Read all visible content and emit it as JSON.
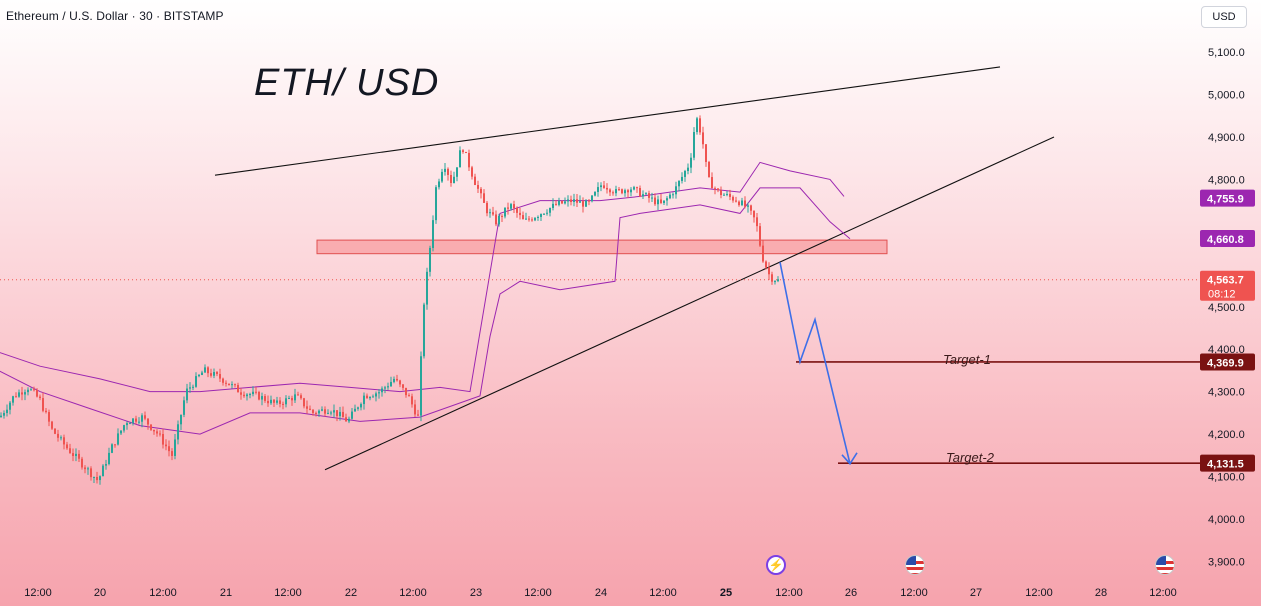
{
  "header": {
    "symbol_line": "Ethereum / U.S. Dollar · 30 · BITSTAMP"
  },
  "title_annotation": "ETH/ USD",
  "currency_button": "USD",
  "targets": {
    "target1_label": "Target-1",
    "target2_label": "Target-2"
  },
  "badges": {
    "upper_band": "4,755.9",
    "lower_band": "4,660.8",
    "last_price": "4,563.7",
    "countdown": "08:12",
    "target1": "4,369.9",
    "target2": "4,131.5"
  },
  "colors": {
    "up_candle": "#26a69a",
    "down_candle": "#ef5350",
    "channel_line": "#9c27b0",
    "arrow": "#3d6fe8",
    "target_line": "#7a1212",
    "zone_fill": "#f8a5a8",
    "zone_border": "#e05050",
    "band_badge": "#9c27b0",
    "price_badge": "#ef5350"
  },
  "icons": [
    "flash-event-icon",
    "us-flag-event-icon"
  ],
  "chart_data": {
    "type": "candlestick",
    "y_axis": {
      "ylim": [
        3900,
        5100
      ],
      "ticks": [
        3900,
        4000,
        4100,
        4200,
        4300,
        4400,
        4500,
        4600,
        4700,
        4800,
        4900,
        5000,
        5100
      ],
      "tick_labels": [
        "3,900.0",
        "4,000.0",
        "4,100.0",
        "4,200.0",
        "4,300.0",
        "4,400.0",
        "4,500.0",
        "4,600.0",
        "4,700.0",
        "4,800.0",
        "4,900.0",
        "5,000.0",
        "5,100.0"
      ]
    },
    "x_axis": {
      "tick_labels": [
        "12:00",
        "20",
        "12:00",
        "21",
        "12:00",
        "22",
        "12:00",
        "23",
        "12:00",
        "24",
        "12:00",
        "25",
        "12:00",
        "26",
        "12:00",
        "27",
        "12:00",
        "28",
        "12:00"
      ]
    },
    "grid": false,
    "price_path": [
      [
        0,
        4240
      ],
      [
        14,
        4290
      ],
      [
        28,
        4310
      ],
      [
        40,
        4280
      ],
      [
        52,
        4210
      ],
      [
        66,
        4170
      ],
      [
        82,
        4130
      ],
      [
        98,
        4090
      ],
      [
        112,
        4170
      ],
      [
        126,
        4230
      ],
      [
        142,
        4240
      ],
      [
        158,
        4200
      ],
      [
        172,
        4150
      ],
      [
        186,
        4300
      ],
      [
        204,
        4350
      ],
      [
        222,
        4330
      ],
      [
        240,
        4300
      ],
      [
        258,
        4290
      ],
      [
        276,
        4270
      ],
      [
        296,
        4290
      ],
      [
        312,
        4250
      ],
      [
        330,
        4260
      ],
      [
        348,
        4230
      ],
      [
        364,
        4290
      ],
      [
        380,
        4300
      ],
      [
        394,
        4330
      ],
      [
        408,
        4290
      ],
      [
        418,
        4240
      ],
      [
        424,
        4510
      ],
      [
        430,
        4640
      ],
      [
        436,
        4780
      ],
      [
        444,
        4840
      ],
      [
        452,
        4790
      ],
      [
        462,
        4880
      ],
      [
        474,
        4800
      ],
      [
        486,
        4730
      ],
      [
        496,
        4700
      ],
      [
        510,
        4740
      ],
      [
        524,
        4700
      ],
      [
        540,
        4720
      ],
      [
        556,
        4740
      ],
      [
        572,
        4750
      ],
      [
        588,
        4740
      ],
      [
        602,
        4790
      ],
      [
        616,
        4770
      ],
      [
        630,
        4780
      ],
      [
        646,
        4760
      ],
      [
        662,
        4740
      ],
      [
        676,
        4780
      ],
      [
        690,
        4840
      ],
      [
        696,
        4950
      ],
      [
        702,
        4900
      ],
      [
        708,
        4800
      ],
      [
        718,
        4770
      ],
      [
        728,
        4760
      ],
      [
        738,
        4750
      ],
      [
        748,
        4730
      ],
      [
        756,
        4700
      ],
      [
        762,
        4620
      ],
      [
        770,
        4570
      ],
      [
        780,
        4560
      ]
    ],
    "upper_channel_line": [
      [
        -10,
        4400
      ],
      [
        40,
        4360
      ],
      [
        100,
        4330
      ],
      [
        150,
        4300
      ],
      [
        200,
        4300
      ],
      [
        250,
        4310
      ],
      [
        300,
        4320
      ],
      [
        350,
        4310
      ],
      [
        400,
        4300
      ],
      [
        440,
        4310
      ],
      [
        470,
        4300
      ],
      [
        500,
        4720
      ],
      [
        540,
        4750
      ],
      [
        600,
        4750
      ],
      [
        640,
        4760
      ],
      [
        700,
        4780
      ],
      [
        740,
        4770
      ],
      [
        760,
        4840
      ],
      [
        790,
        4820
      ],
      [
        830,
        4800
      ],
      [
        844,
        4760
      ]
    ],
    "lower_channel_line": [
      [
        -10,
        4360
      ],
      [
        40,
        4300
      ],
      [
        90,
        4260
      ],
      [
        140,
        4220
      ],
      [
        200,
        4200
      ],
      [
        250,
        4250
      ],
      [
        300,
        4250
      ],
      [
        360,
        4230
      ],
      [
        420,
        4240
      ],
      [
        480,
        4290
      ],
      [
        490,
        4430
      ],
      [
        500,
        4530
      ],
      [
        520,
        4560
      ],
      [
        560,
        4540
      ],
      [
        615,
        4560
      ],
      [
        620,
        4710
      ],
      [
        640,
        4720
      ],
      [
        700,
        4740
      ],
      [
        740,
        4720
      ],
      [
        760,
        4780
      ],
      [
        800,
        4780
      ],
      [
        830,
        4700
      ],
      [
        850,
        4660
      ]
    ],
    "wedge_upper_line": [
      [
        215,
        4810
      ],
      [
        1000,
        5065
      ]
    ],
    "wedge_lower_line": [
      [
        325,
        4116
      ],
      [
        1054,
        4900
      ]
    ],
    "resistance_zone": {
      "x": [
        317,
        887
      ],
      "y": [
        4625,
        4657
      ]
    },
    "projection_path": [
      [
        780,
        4605
      ],
      [
        800,
        4370
      ],
      [
        815,
        4470
      ],
      [
        850,
        4130
      ]
    ],
    "targets": [
      {
        "name": "Target-1",
        "value": 4369.9
      },
      {
        "name": "Target-2",
        "value": 4131.5
      }
    ],
    "last_price": 4563.7
  }
}
